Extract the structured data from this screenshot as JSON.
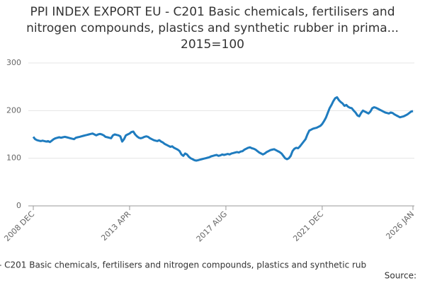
{
  "chart_data": {
    "type": "line",
    "title": "PPI INDEX EXPORT EU - C201 Basic chemicals, fertilisers and nitrogen compounds, plastics and synthetic rubber in prima... 2015=100",
    "footer": "- C201 Basic chemicals, fertilisers and nitrogen compounds, plastics and synthetic rub",
    "source": "Source:",
    "categories": [
      "2008 DEC",
      null,
      null,
      null,
      null,
      null,
      null,
      null,
      null,
      null,
      null,
      null,
      null,
      null,
      null,
      null,
      null,
      null,
      null,
      null,
      null,
      null,
      null,
      null,
      null,
      null,
      null,
      null,
      null,
      null,
      null,
      null,
      null,
      null,
      null,
      null,
      null,
      null,
      null,
      null,
      null,
      null,
      null,
      null,
      null,
      null,
      null,
      null,
      null,
      null,
      null,
      null,
      "2013 APR",
      null,
      null,
      null,
      null,
      null,
      null,
      null,
      null,
      null,
      null,
      null,
      null,
      null,
      null,
      null,
      null,
      null,
      null,
      null,
      null,
      null,
      null,
      null,
      null,
      null,
      null,
      null,
      null,
      null,
      null,
      null,
      null,
      null,
      null,
      null,
      null,
      null,
      null,
      null,
      null,
      null,
      null,
      null,
      null,
      null,
      null,
      null,
      null,
      null,
      null,
      null,
      "2017 AUG",
      null,
      null,
      null,
      null,
      null,
      null,
      null,
      null,
      null,
      null,
      null,
      null,
      null,
      null,
      null,
      null,
      null,
      null,
      null,
      null,
      null,
      null,
      null,
      null,
      null,
      null,
      null,
      null,
      null,
      null,
      null,
      null,
      null,
      null,
      null,
      null,
      null,
      null,
      null,
      null,
      null,
      null,
      null,
      null,
      null,
      null,
      null,
      null,
      null,
      null,
      null,
      "2021 DEC",
      null,
      null,
      null,
      null,
      null,
      null,
      null,
      null,
      null,
      null,
      null,
      null,
      null,
      null,
      null,
      null,
      null,
      null,
      null,
      null,
      null,
      null,
      null,
      null,
      null,
      null,
      null,
      null,
      null,
      null,
      null,
      null,
      null,
      null,
      null,
      null,
      null,
      null,
      null,
      null,
      null,
      null,
      null,
      null,
      null,
      null,
      null,
      null,
      "2026 JAN"
    ],
    "values": [
      145,
      140,
      138,
      137,
      136,
      137,
      136,
      135,
      136,
      134,
      137,
      140,
      142,
      143,
      144,
      143,
      144,
      145,
      144,
      143,
      142,
      141,
      140,
      143,
      144,
      145,
      146,
      147,
      148,
      149,
      150,
      151,
      152,
      150,
      148,
      150,
      151,
      150,
      148,
      145,
      144,
      143,
      142,
      148,
      150,
      149,
      148,
      146,
      135,
      140,
      148,
      150,
      152,
      155,
      156,
      150,
      146,
      143,
      142,
      143,
      145,
      146,
      145,
      142,
      140,
      138,
      137,
      136,
      138,
      135,
      133,
      130,
      128,
      126,
      124,
      125,
      122,
      120,
      118,
      115,
      108,
      105,
      110,
      108,
      103,
      100,
      98,
      96,
      95,
      96,
      97,
      98,
      99,
      100,
      101,
      102,
      104,
      105,
      106,
      107,
      105,
      106,
      108,
      107,
      108,
      109,
      108,
      110,
      111,
      112,
      113,
      112,
      114,
      115,
      118,
      120,
      122,
      123,
      121,
      120,
      118,
      115,
      112,
      110,
      108,
      110,
      113,
      115,
      117,
      118,
      119,
      117,
      115,
      113,
      110,
      105,
      100,
      98,
      100,
      105,
      115,
      120,
      122,
      121,
      125,
      130,
      135,
      140,
      150,
      158,
      160,
      162,
      163,
      164,
      166,
      168,
      172,
      178,
      185,
      195,
      205,
      212,
      220,
      226,
      228,
      222,
      218,
      215,
      210,
      212,
      208,
      206,
      205,
      200,
      196,
      190,
      188,
      195,
      200,
      198,
      196,
      194,
      198,
      205,
      207,
      206,
      204,
      202,
      200,
      198,
      196,
      195,
      194,
      196,
      195,
      192,
      190,
      188,
      186,
      187,
      188,
      190,
      192,
      195,
      198,
      199
    ],
    "color": "#1f7cbf",
    "ylim": [
      0,
      300
    ],
    "yticks": [
      0,
      100,
      200,
      300
    ],
    "grid": true
  }
}
